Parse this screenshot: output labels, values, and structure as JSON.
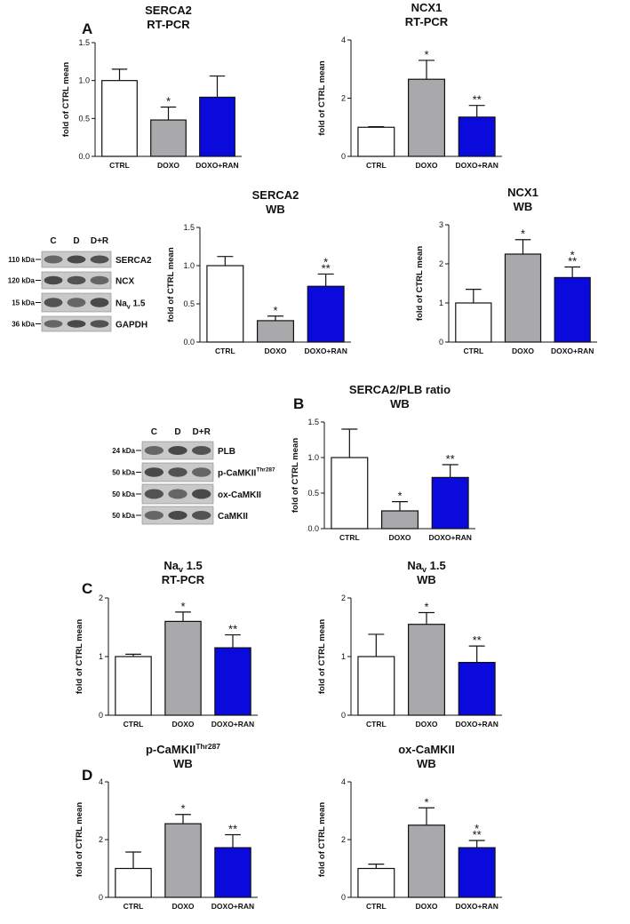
{
  "panel_labels": [
    "A",
    "B",
    "C",
    "D"
  ],
  "blots": [
    {
      "lanes": [
        "C",
        "D",
        "D+R"
      ],
      "rows": [
        {
          "mw": "110 kDa",
          "protein": "SERCA2"
        },
        {
          "mw": "120 kDa",
          "protein": "NCX"
        },
        {
          "mw": "15 kDa",
          "protein": {
            "text": "Na",
            "sub": "v",
            "tail": " 1.5"
          }
        },
        {
          "mw": "36 kDa",
          "protein": "GAPDH"
        }
      ]
    },
    {
      "lanes": [
        "C",
        "D",
        "D+R"
      ],
      "rows": [
        {
          "mw": "24 kDa",
          "protein": "PLB"
        },
        {
          "mw": "50 kDa",
          "protein": {
            "text": "p-CaMKII",
            "sup": "Thr287"
          }
        },
        {
          "mw": "50 kDa",
          "protein": "ox-CaMKII"
        },
        {
          "mw": "50 kDa",
          "protein": "CaMKII"
        }
      ]
    }
  ],
  "chart_data": [
    {
      "type": "bar",
      "title": [
        "SERCA2",
        "RT-PCR"
      ],
      "y_label": "fold of CTRL mean",
      "categories": [
        "CTRL",
        "DOXO",
        "DOXO+RAN"
      ],
      "values": [
        1.0,
        0.48,
        0.78
      ],
      "errors": [
        0.15,
        0.17,
        0.28
      ],
      "colors": [
        "#ffffff",
        "#a9a9ac",
        "#0a0adc"
      ],
      "annotations": [
        [],
        [
          "*"
        ],
        []
      ],
      "ylim": [
        0,
        1.5
      ],
      "yticks": [
        {
          "value": 0,
          "label": "0.0"
        },
        {
          "value": 0.5,
          "label": "0.5"
        },
        {
          "value": 1,
          "label": "1.0"
        },
        {
          "value": 1.5,
          "label": "1.5"
        }
      ]
    },
    {
      "type": "bar",
      "title": [
        "NCX1",
        "RT-PCR"
      ],
      "y_label": "fold of CTRL mean",
      "categories": [
        "CTRL",
        "DOXO",
        "DOXO+RAN"
      ],
      "values": [
        1.0,
        2.65,
        1.35
      ],
      "errors": [
        0.02,
        0.65,
        0.4
      ],
      "colors": [
        "#ffffff",
        "#a9a9ac",
        "#0a0adc"
      ],
      "annotations": [
        [],
        [
          "*"
        ],
        [
          "**"
        ]
      ],
      "ylim": [
        0,
        4
      ],
      "yticks": [
        0,
        2,
        4
      ]
    },
    {
      "type": "bar",
      "title": [
        "SERCA2",
        "WB"
      ],
      "y_label": "fold of CTRL mean",
      "categories": [
        "CTRL",
        "DOXO",
        "DOXO+RAN"
      ],
      "values": [
        1.0,
        0.28,
        0.73
      ],
      "errors": [
        0.12,
        0.06,
        0.16
      ],
      "colors": [
        "#ffffff",
        "#a9a9ac",
        "#0a0adc"
      ],
      "annotations": [
        [],
        [
          "*"
        ],
        [
          "**",
          "*"
        ]
      ],
      "ylim": [
        0,
        1.5
      ],
      "yticks": [
        {
          "value": 0,
          "label": "0.0"
        },
        {
          "value": 0.5,
          "label": "0.5"
        },
        {
          "value": 1,
          "label": "1.0"
        },
        {
          "value": 1.5,
          "label": "1.5"
        }
      ]
    },
    {
      "type": "bar",
      "title": [
        "NCX1",
        "WB"
      ],
      "y_label": "fold of CTRL mean",
      "categories": [
        "CTRL",
        "DOXO",
        "DOXO+RAN"
      ],
      "values": [
        1.0,
        2.25,
        1.65
      ],
      "errors": [
        0.35,
        0.37,
        0.27
      ],
      "colors": [
        "#ffffff",
        "#a9a9ac",
        "#0a0adc"
      ],
      "annotations": [
        [],
        [
          "*"
        ],
        [
          "**",
          "*"
        ]
      ],
      "ylim": [
        0,
        3
      ],
      "yticks": [
        0,
        1,
        2,
        3
      ]
    },
    {
      "type": "bar",
      "title": [
        "SERCA2/PLB ratio",
        "WB"
      ],
      "y_label": "fold of CTRL mean",
      "categories": [
        "CTRL",
        "DOXO",
        "DOXO+RAN"
      ],
      "values": [
        1.0,
        0.25,
        0.72
      ],
      "errors": [
        0.4,
        0.13,
        0.18
      ],
      "colors": [
        "#ffffff",
        "#a9a9ac",
        "#0a0adc"
      ],
      "annotations": [
        [],
        [
          "*"
        ],
        [
          "**"
        ]
      ],
      "ylim": [
        0,
        1.5
      ],
      "yticks": [
        {
          "value": 0,
          "label": "0.0"
        },
        {
          "value": 0.5,
          "label": "0.5"
        },
        {
          "value": 1,
          "label": "1.0"
        },
        {
          "value": 1.5,
          "label": "1.5"
        }
      ]
    },
    {
      "type": "bar",
      "title": [
        {
          "text": "Na",
          "sub": "v",
          "tail": " 1.5"
        },
        "RT-PCR"
      ],
      "y_label": "fold of CTRL mean",
      "categories": [
        "CTRL",
        "DOXO",
        "DOXO+RAN"
      ],
      "values": [
        1.0,
        1.6,
        1.15
      ],
      "errors": [
        0.04,
        0.16,
        0.22
      ],
      "colors": [
        "#ffffff",
        "#a9a9ac",
        "#0a0adc"
      ],
      "annotations": [
        [],
        [
          "*"
        ],
        [
          "**"
        ]
      ],
      "ylim": [
        0,
        2
      ],
      "yticks": [
        0,
        1,
        2
      ]
    },
    {
      "type": "bar",
      "title": [
        {
          "text": "Na",
          "sub": "v",
          "tail": " 1.5"
        },
        "WB"
      ],
      "y_label": "fold of CTRL mean",
      "categories": [
        "CTRL",
        "DOXO",
        "DOXO+RAN"
      ],
      "values": [
        1.0,
        1.55,
        0.9
      ],
      "errors": [
        0.38,
        0.2,
        0.28
      ],
      "colors": [
        "#ffffff",
        "#a9a9ac",
        "#0a0adc"
      ],
      "annotations": [
        [],
        [
          "*"
        ],
        [
          "**"
        ]
      ],
      "ylim": [
        0,
        2
      ],
      "yticks": [
        0,
        1,
        2
      ]
    },
    {
      "type": "bar",
      "title": [
        {
          "text": "p-CaMKII",
          "sup": "Thr287"
        },
        "WB"
      ],
      "y_label": "fold of CTRL mean",
      "categories": [
        "CTRL",
        "DOXO",
        "DOXO+RAN"
      ],
      "values": [
        1.0,
        2.55,
        1.72
      ],
      "errors": [
        0.57,
        0.32,
        0.45
      ],
      "colors": [
        "#ffffff",
        "#a9a9ac",
        "#0a0adc"
      ],
      "annotations": [
        [],
        [
          "*"
        ],
        [
          "**"
        ]
      ],
      "ylim": [
        0,
        4
      ],
      "yticks": [
        0,
        2,
        4
      ]
    },
    {
      "type": "bar",
      "title": [
        "ox-CaMKII",
        "WB"
      ],
      "y_label": "fold of CTRL mean",
      "categories": [
        "CTRL",
        "DOXO",
        "DOXO+RAN"
      ],
      "values": [
        1.0,
        2.5,
        1.72
      ],
      "errors": [
        0.15,
        0.6,
        0.25
      ],
      "colors": [
        "#ffffff",
        "#a9a9ac",
        "#0a0adc"
      ],
      "annotations": [
        [],
        [
          "*"
        ],
        [
          "**",
          "*"
        ]
      ],
      "ylim": [
        0,
        4
      ],
      "yticks": [
        0,
        2,
        4
      ]
    }
  ]
}
